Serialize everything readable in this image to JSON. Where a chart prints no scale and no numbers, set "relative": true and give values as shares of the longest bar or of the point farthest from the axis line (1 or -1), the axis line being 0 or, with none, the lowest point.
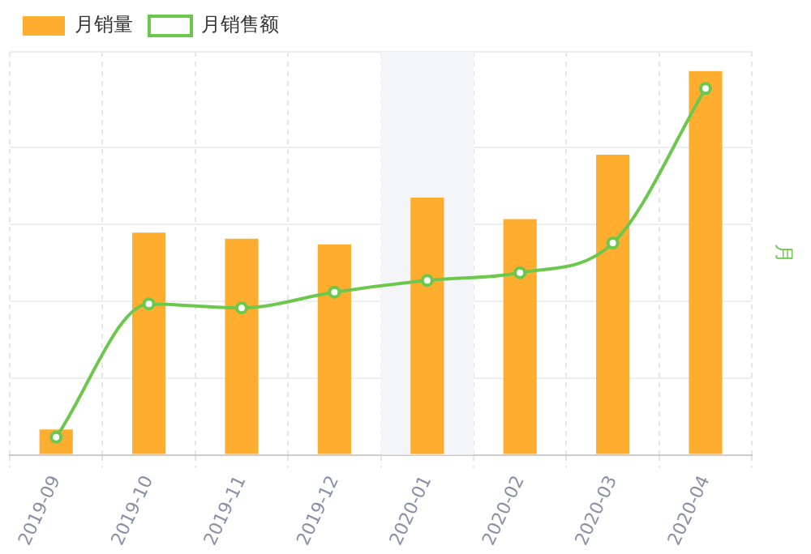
{
  "chart_data": {
    "type": "bar",
    "relative": true,
    "y2label": "月",
    "categories": [
      "2019-09",
      "2019-10",
      "2019-11",
      "2019-12",
      "2020-01",
      "2020-02",
      "2020-03",
      "2020-04"
    ],
    "series": [
      {
        "name": "月销量",
        "color": "#ffad2e",
        "values": [
          0.066,
          0.579,
          0.563,
          0.548,
          0.67,
          0.614,
          0.782,
          1
        ]
      },
      {
        "name": "月销售额",
        "type": "line",
        "axis": "y2",
        "color": "#6cc84c",
        "marker": "circle",
        "values": [
          0.048,
          0.412,
          0.401,
          0.444,
          0.476,
          0.497,
          0.578,
          1
        ]
      }
    ],
    "bands": [
      {
        "axis": "x",
        "from": "2020-01",
        "to": "2020-01",
        "color": "#f3f5f9"
      }
    ],
    "grid": true,
    "legend": "top left"
  }
}
